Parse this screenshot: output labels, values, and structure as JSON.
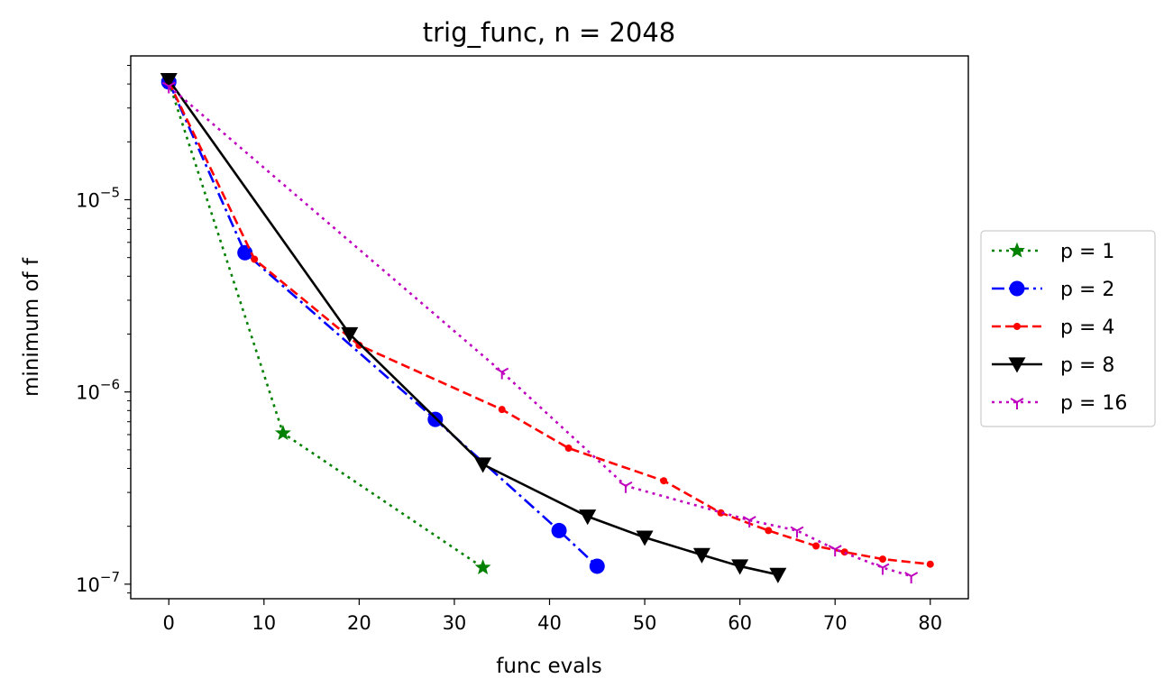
{
  "chart_data": {
    "type": "line",
    "title": "trig_func, n = 2048",
    "xlabel": "func evals",
    "ylabel": "minimum of f",
    "xscale": "linear",
    "yscale": "log",
    "xlim": [
      -4,
      84
    ],
    "ylim": [
      8.4e-08,
      5.6e-05
    ],
    "xticks": [
      0,
      10,
      20,
      30,
      40,
      50,
      60,
      70,
      80
    ],
    "xtick_labels": [
      "0",
      "10",
      "20",
      "30",
      "40",
      "50",
      "60",
      "70",
      "80"
    ],
    "yticks": [
      1e-07,
      1e-06,
      1e-05
    ],
    "ytick_labels": [
      {
        "base": "10",
        "exp": "−7"
      },
      {
        "base": "10",
        "exp": "−6"
      },
      {
        "base": "10",
        "exp": "−5"
      }
    ],
    "legend_position": "outside-right",
    "grid": false,
    "series": [
      {
        "name": "p = 1",
        "color": "#008000",
        "line_style": "dotted",
        "marker": "star",
        "x": [
          0,
          12,
          33
        ],
        "y": [
          4.1e-05,
          6.1e-07,
          1.22e-07
        ]
      },
      {
        "name": "p = 2",
        "color": "#0000ff",
        "line_style": "dashdot",
        "marker": "circle",
        "x": [
          0,
          8,
          28,
          41,
          45
        ],
        "y": [
          4.1e-05,
          5.3e-06,
          7.2e-07,
          1.9e-07,
          1.24e-07
        ]
      },
      {
        "name": "p = 4",
        "color": "#ff0000",
        "line_style": "dashed",
        "marker": "point",
        "x": [
          0,
          9,
          20,
          35,
          42,
          52,
          58,
          63,
          68,
          71,
          75,
          80
        ],
        "y": [
          4.1e-05,
          4.9e-06,
          1.75e-06,
          8.1e-07,
          5.1e-07,
          3.45e-07,
          2.35e-07,
          1.9e-07,
          1.58e-07,
          1.47e-07,
          1.35e-07,
          1.27e-07
        ]
      },
      {
        "name": "p = 8",
        "color": "#000000",
        "line_style": "solid",
        "marker": "triangle-down",
        "x": [
          0,
          19,
          33,
          44,
          50,
          56,
          60,
          64
        ],
        "y": [
          4.2e-05,
          2e-06,
          4.2e-07,
          2.25e-07,
          1.75e-07,
          1.42e-07,
          1.24e-07,
          1.12e-07
        ]
      },
      {
        "name": "p = 16",
        "color": "#bf00bf",
        "line_style": "dotted",
        "marker": "tri-down",
        "x": [
          0,
          35,
          48,
          61,
          66,
          70,
          75,
          78
        ],
        "y": [
          3.9e-05,
          1.27e-06,
          3.25e-07,
          2.15e-07,
          1.9e-07,
          1.52e-07,
          1.22e-07,
          1.1e-07
        ]
      }
    ]
  }
}
